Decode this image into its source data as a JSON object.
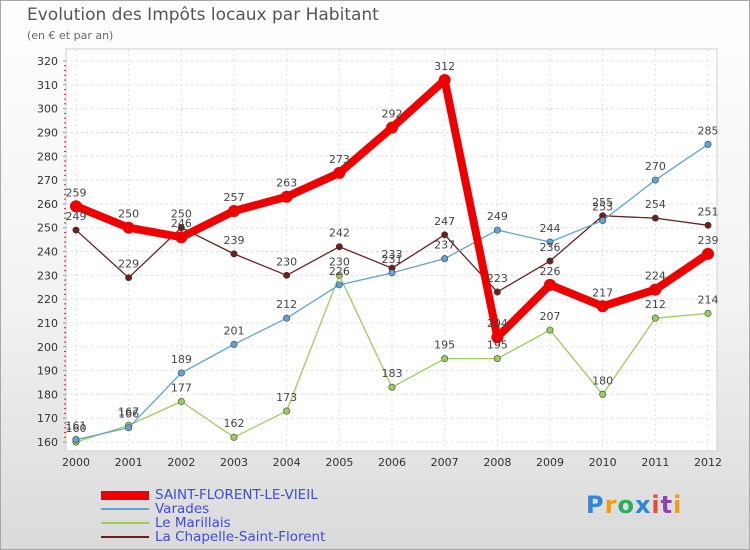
{
  "chart_data": {
    "type": "line",
    "title": "Evolution des Impôts locaux par Habitant",
    "subtitle": "(en € et par an)",
    "xlabel": "",
    "ylabel": "",
    "ylim": [
      155,
      320
    ],
    "y_ticks": [
      160,
      170,
      180,
      190,
      200,
      210,
      220,
      230,
      240,
      250,
      260,
      270,
      280,
      290,
      300,
      310,
      320
    ],
    "grid": true,
    "categories": [
      "2000",
      "2001",
      "2002",
      "2003",
      "2004",
      "2005",
      "2006",
      "2007",
      "2008",
      "2009",
      "2010",
      "2011",
      "2012"
    ],
    "series": [
      {
        "name": "La Chapelle-Saint-Florent",
        "color": "#6b1f1f",
        "highlight": false,
        "values": [
          249,
          229,
          250,
          239,
          230,
          242,
          233,
          247,
          223,
          236,
          255,
          254,
          251
        ]
      },
      {
        "name": "Le Marillais",
        "color": "#9acd5b",
        "highlight": false,
        "values": [
          160,
          167,
          177,
          162,
          173,
          230,
          183,
          195,
          195,
          207,
          180,
          212,
          214
        ]
      },
      {
        "name": "Varades",
        "color": "#5fa3d6",
        "highlight": false,
        "values": [
          161,
          166,
          189,
          201,
          212,
          226,
          231,
          237,
          249,
          244,
          253,
          270,
          285
        ]
      },
      {
        "name": "SAINT-FLORENT-LE-VIEIL",
        "color": "#ee0000",
        "highlight": true,
        "values": [
          259,
          250,
          246,
          257,
          263,
          273,
          292,
          312,
          204,
          226,
          217,
          224,
          239
        ]
      }
    ]
  },
  "legend": [
    {
      "label": "SAINT-FLORENT-LE-VIEIL",
      "color": "#ee0000"
    },
    {
      "label": "Varades",
      "color": "#5fa3d6"
    },
    {
      "label": "Le Marillais",
      "color": "#9acd5b"
    },
    {
      "label": "La Chapelle-Saint-Florent",
      "color": "#6b1f1f"
    }
  ],
  "logo": {
    "letters": [
      "P",
      "r",
      "o",
      "x",
      "i",
      "t",
      "i"
    ]
  }
}
